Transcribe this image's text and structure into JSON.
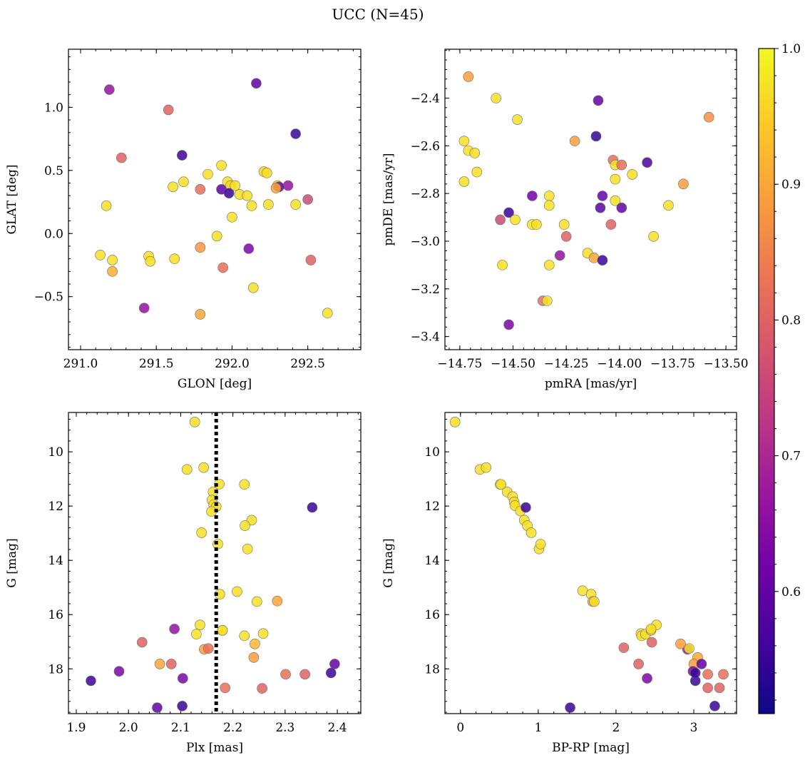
{
  "title": "UCC (N=45)",
  "colorbar": {
    "range": [
      0.51,
      1.0
    ],
    "ticks": [
      0.6,
      0.7,
      0.8,
      0.9,
      1.0
    ],
    "tick_labels": [
      "0.6",
      "0.7",
      "0.8",
      "0.9",
      "1.0"
    ],
    "colormap": "plasma",
    "colormap_stops": [
      "#0d0887",
      "#46039f",
      "#7201a8",
      "#9c179e",
      "#bd3786",
      "#d8576b",
      "#ed7953",
      "#fb9f3a",
      "#fdca26",
      "#f0f921"
    ]
  },
  "chart_data": [
    {
      "type": "scatter",
      "xlabel": "GLON [deg]",
      "ylabel": "GLAT [deg]",
      "xlim": [
        290.92,
        292.85
      ],
      "ylim": [
        -0.92,
        1.46
      ],
      "xticks": [
        291.0,
        291.5,
        292.0,
        292.5
      ],
      "xtick_labels": [
        "291.0",
        "291.5",
        "292.0",
        "292.5"
      ],
      "yticks": [
        -0.5,
        0.0,
        0.5,
        1.0
      ],
      "ytick_labels": [
        "−0.5",
        "0.0",
        "0.5",
        "1.0"
      ],
      "x": [
        291.19,
        292.16,
        291.58,
        291.27,
        292.42,
        291.67,
        291.84,
        291.93,
        292.21,
        292.23,
        291.68,
        291.61,
        291.79,
        291.97,
        292.05,
        291.99,
        291.93,
        292.3,
        292.37,
        292.31,
        292.29,
        292.1,
        291.17,
        292.13,
        292.0,
        292.5,
        292.42,
        291.13,
        291.45,
        291.21,
        291.46,
        291.62,
        292.52,
        292.11,
        291.9,
        291.21,
        291.79,
        291.94,
        292.14,
        291.42,
        291.79,
        292.63,
        291.98,
        292.02,
        292.24
      ],
      "y": [
        1.14,
        1.19,
        0.98,
        0.6,
        0.79,
        0.62,
        0.47,
        0.54,
        0.49,
        0.48,
        0.41,
        0.37,
        0.35,
        0.41,
        0.31,
        0.38,
        0.35,
        0.38,
        0.38,
        0.37,
        0.36,
        0.3,
        0.22,
        0.22,
        0.13,
        0.27,
        0.23,
        -0.17,
        -0.18,
        -0.21,
        -0.22,
        -0.2,
        -0.21,
        -0.12,
        -0.02,
        -0.3,
        -0.11,
        -0.27,
        -0.43,
        -0.59,
        -0.64,
        -0.63,
        0.32,
        0.38,
        0.23
      ],
      "c": [
        0.66,
        0.6,
        0.8,
        0.8,
        0.55,
        0.55,
        0.97,
        0.97,
        0.96,
        0.97,
        0.97,
        0.97,
        0.82,
        0.97,
        0.97,
        0.96,
        0.59,
        0.95,
        0.66,
        0.6,
        0.9,
        0.97,
        0.97,
        0.97,
        0.97,
        0.76,
        0.97,
        0.97,
        0.97,
        0.97,
        0.97,
        0.97,
        0.8,
        0.63,
        0.97,
        0.91,
        0.88,
        0.82,
        0.97,
        0.66,
        0.9,
        0.97,
        0.55,
        0.97,
        0.97
      ]
    },
    {
      "type": "scatter",
      "xlabel": "pmRA [mas/yr]",
      "ylabel": "pmDE [mas/yr]",
      "xlim": [
        -14.82,
        -13.45
      ],
      "ylim": [
        -3.455,
        -2.195
      ],
      "xticks": [
        -14.75,
        -14.5,
        -14.25,
        -14.0,
        -13.75,
        -13.5
      ],
      "xtick_labels": [
        "−14.75",
        "−14.50",
        "−14.25",
        "−14.00",
        "−13.75",
        "−13.50"
      ],
      "yticks": [
        -3.4,
        -3.2,
        -3.0,
        -2.8,
        -2.6,
        -2.4
      ],
      "ytick_labels": [
        "−3.4",
        "−3.2",
        "−3.0",
        "−2.8",
        "−2.6",
        "−2.4"
      ],
      "x": [
        -14.71,
        -14.58,
        -14.48,
        -14.1,
        -13.58,
        -14.73,
        -14.71,
        -14.68,
        -14.67,
        -14.73,
        -14.11,
        -14.21,
        -14.03,
        -14.02,
        -13.99,
        -13.87,
        -14.02,
        -13.94,
        -14.41,
        -14.33,
        -14.08,
        -13.7,
        -14.02,
        -13.77,
        -14.52,
        -14.49,
        -14.56,
        -14.33,
        -14.26,
        -14.41,
        -14.39,
        -14.09,
        -14.04,
        -13.99,
        -13.84,
        -14.25,
        -14.28,
        -14.15,
        -14.12,
        -14.08,
        -14.55,
        -14.36,
        -14.34,
        -14.33,
        -14.52
      ],
      "y": [
        -2.31,
        -2.4,
        -2.49,
        -2.41,
        -2.48,
        -2.58,
        -2.62,
        -2.63,
        -2.71,
        -2.75,
        -2.56,
        -2.58,
        -2.66,
        -2.68,
        -2.68,
        -2.67,
        -2.74,
        -2.72,
        -2.81,
        -2.81,
        -2.81,
        -2.76,
        -2.83,
        -2.85,
        -2.88,
        -2.91,
        -2.91,
        -2.85,
        -2.93,
        -2.93,
        -2.93,
        -2.86,
        -2.93,
        -2.86,
        -2.98,
        -2.98,
        -3.06,
        -3.05,
        -3.07,
        -3.08,
        -3.1,
        -3.25,
        -3.25,
        -3.1,
        -3.35
      ],
      "c": [
        0.89,
        0.97,
        0.97,
        0.6,
        0.87,
        0.97,
        0.97,
        0.97,
        0.97,
        0.97,
        0.55,
        0.89,
        0.82,
        0.97,
        0.82,
        0.57,
        0.97,
        0.97,
        0.62,
        0.97,
        0.6,
        0.89,
        0.97,
        0.97,
        0.55,
        0.97,
        0.76,
        0.97,
        0.97,
        0.97,
        0.97,
        0.59,
        0.8,
        0.6,
        0.97,
        0.8,
        0.66,
        0.97,
        0.9,
        0.55,
        0.97,
        0.82,
        0.97,
        0.97,
        0.63
      ]
    },
    {
      "type": "scatter",
      "xlabel": "Plx [mas]",
      "ylabel": "G [mag]",
      "xlim": [
        1.885,
        2.445
      ],
      "ylim": [
        19.65,
        8.55
      ],
      "vline": 2.168,
      "xticks": [
        1.9,
        2.0,
        2.1,
        2.2,
        2.3,
        2.4
      ],
      "xtick_labels": [
        "1.9",
        "2.0",
        "2.1",
        "2.2",
        "2.3",
        "2.4"
      ],
      "yticks": [
        10,
        12,
        14,
        16,
        18
      ],
      "ytick_labels": [
        "10",
        "12",
        "14",
        "16",
        "18"
      ],
      "x": [
        2.127,
        2.112,
        2.144,
        2.162,
        2.174,
        2.16,
        2.163,
        2.168,
        2.159,
        2.171,
        2.222,
        2.236,
        2.14,
        2.223,
        2.175,
        2.228,
        2.208,
        2.18,
        2.246,
        2.285,
        2.352,
        2.088,
        2.137,
        2.18,
        2.258,
        2.222,
        2.13,
        2.145,
        2.153,
        2.026,
        2.242,
        2.24,
        2.06,
        2.082,
        2.395,
        1.982,
        2.104,
        2.388,
        2.301,
        2.338,
        2.185,
        2.256,
        1.928,
        2.055,
        2.103
      ],
      "y": [
        8.9,
        10.65,
        10.58,
        11.48,
        11.19,
        11.78,
        11.95,
        12.02,
        12.2,
        13.4,
        11.2,
        12.52,
        12.98,
        12.72,
        15.25,
        13.58,
        15.15,
        16.58,
        15.52,
        15.5,
        12.05,
        16.53,
        16.38,
        16.58,
        16.7,
        16.78,
        16.72,
        17.28,
        17.25,
        17.02,
        17.08,
        17.58,
        17.82,
        17.82,
        17.82,
        18.09,
        18.35,
        18.15,
        18.2,
        18.2,
        18.7,
        18.72,
        18.44,
        19.43,
        19.37
      ],
      "c": [
        0.97,
        0.97,
        0.97,
        0.97,
        0.97,
        0.97,
        0.97,
        0.97,
        0.97,
        0.97,
        0.97,
        0.97,
        0.97,
        0.97,
        0.97,
        0.97,
        0.97,
        0.97,
        0.97,
        0.9,
        0.55,
        0.66,
        0.97,
        0.97,
        0.97,
        0.97,
        0.97,
        0.89,
        0.82,
        0.8,
        0.92,
        0.89,
        0.9,
        0.8,
        0.6,
        0.63,
        0.63,
        0.55,
        0.82,
        0.8,
        0.82,
        0.8,
        0.55,
        0.6,
        0.55
      ]
    },
    {
      "type": "scatter",
      "xlabel": "BP-RP [mag]",
      "ylabel": "G [mag]",
      "xlim": [
        -0.2,
        3.55
      ],
      "ylim": [
        19.65,
        8.55
      ],
      "xticks": [
        0,
        1,
        2,
        3
      ],
      "xtick_labels": [
        "0",
        "1",
        "2",
        "3"
      ],
      "yticks": [
        10,
        12,
        14,
        16,
        18
      ],
      "ytick_labels": [
        "10",
        "12",
        "14",
        "16",
        "18"
      ],
      "x": [
        -0.07,
        0.25,
        0.33,
        0.51,
        0.52,
        0.6,
        0.67,
        0.69,
        0.7,
        0.77,
        0.82,
        0.86,
        0.91,
        0.84,
        1.01,
        1.03,
        1.57,
        1.68,
        1.7,
        1.72,
        2.32,
        2.33,
        2.38,
        2.45,
        2.46,
        2.52,
        2.1,
        2.45,
        2.92,
        2.94,
        2.83,
        2.29,
        2.4,
        3.05,
        3.0,
        3.1,
        2.99,
        3.02,
        3.18,
        3.02,
        3.18,
        3.38,
        3.33,
        3.27,
        1.41
      ],
      "y": [
        8.9,
        10.65,
        10.58,
        11.2,
        11.2,
        11.48,
        11.65,
        11.85,
        11.98,
        12.18,
        12.52,
        12.72,
        12.98,
        12.05,
        13.58,
        13.4,
        15.12,
        15.25,
        15.52,
        15.52,
        16.7,
        16.78,
        16.72,
        16.58,
        17.02,
        16.38,
        17.22,
        16.53,
        17.28,
        17.25,
        17.08,
        17.82,
        18.35,
        17.58,
        17.82,
        17.82,
        18.09,
        18.44,
        18.2,
        18.15,
        18.7,
        18.2,
        18.7,
        19.37,
        19.43
      ],
      "c": [
        0.97,
        0.97,
        0.97,
        0.97,
        0.97,
        0.97,
        0.97,
        0.97,
        0.97,
        0.97,
        0.97,
        0.97,
        0.97,
        0.55,
        0.97,
        0.97,
        0.97,
        0.97,
        0.9,
        0.97,
        0.97,
        0.97,
        0.97,
        0.97,
        0.8,
        0.97,
        0.8,
        0.97,
        0.66,
        0.97,
        0.89,
        0.8,
        0.63,
        0.9,
        0.89,
        0.6,
        0.63,
        0.55,
        0.82,
        0.55,
        0.8,
        0.82,
        0.8,
        0.55,
        0.55
      ]
    }
  ]
}
